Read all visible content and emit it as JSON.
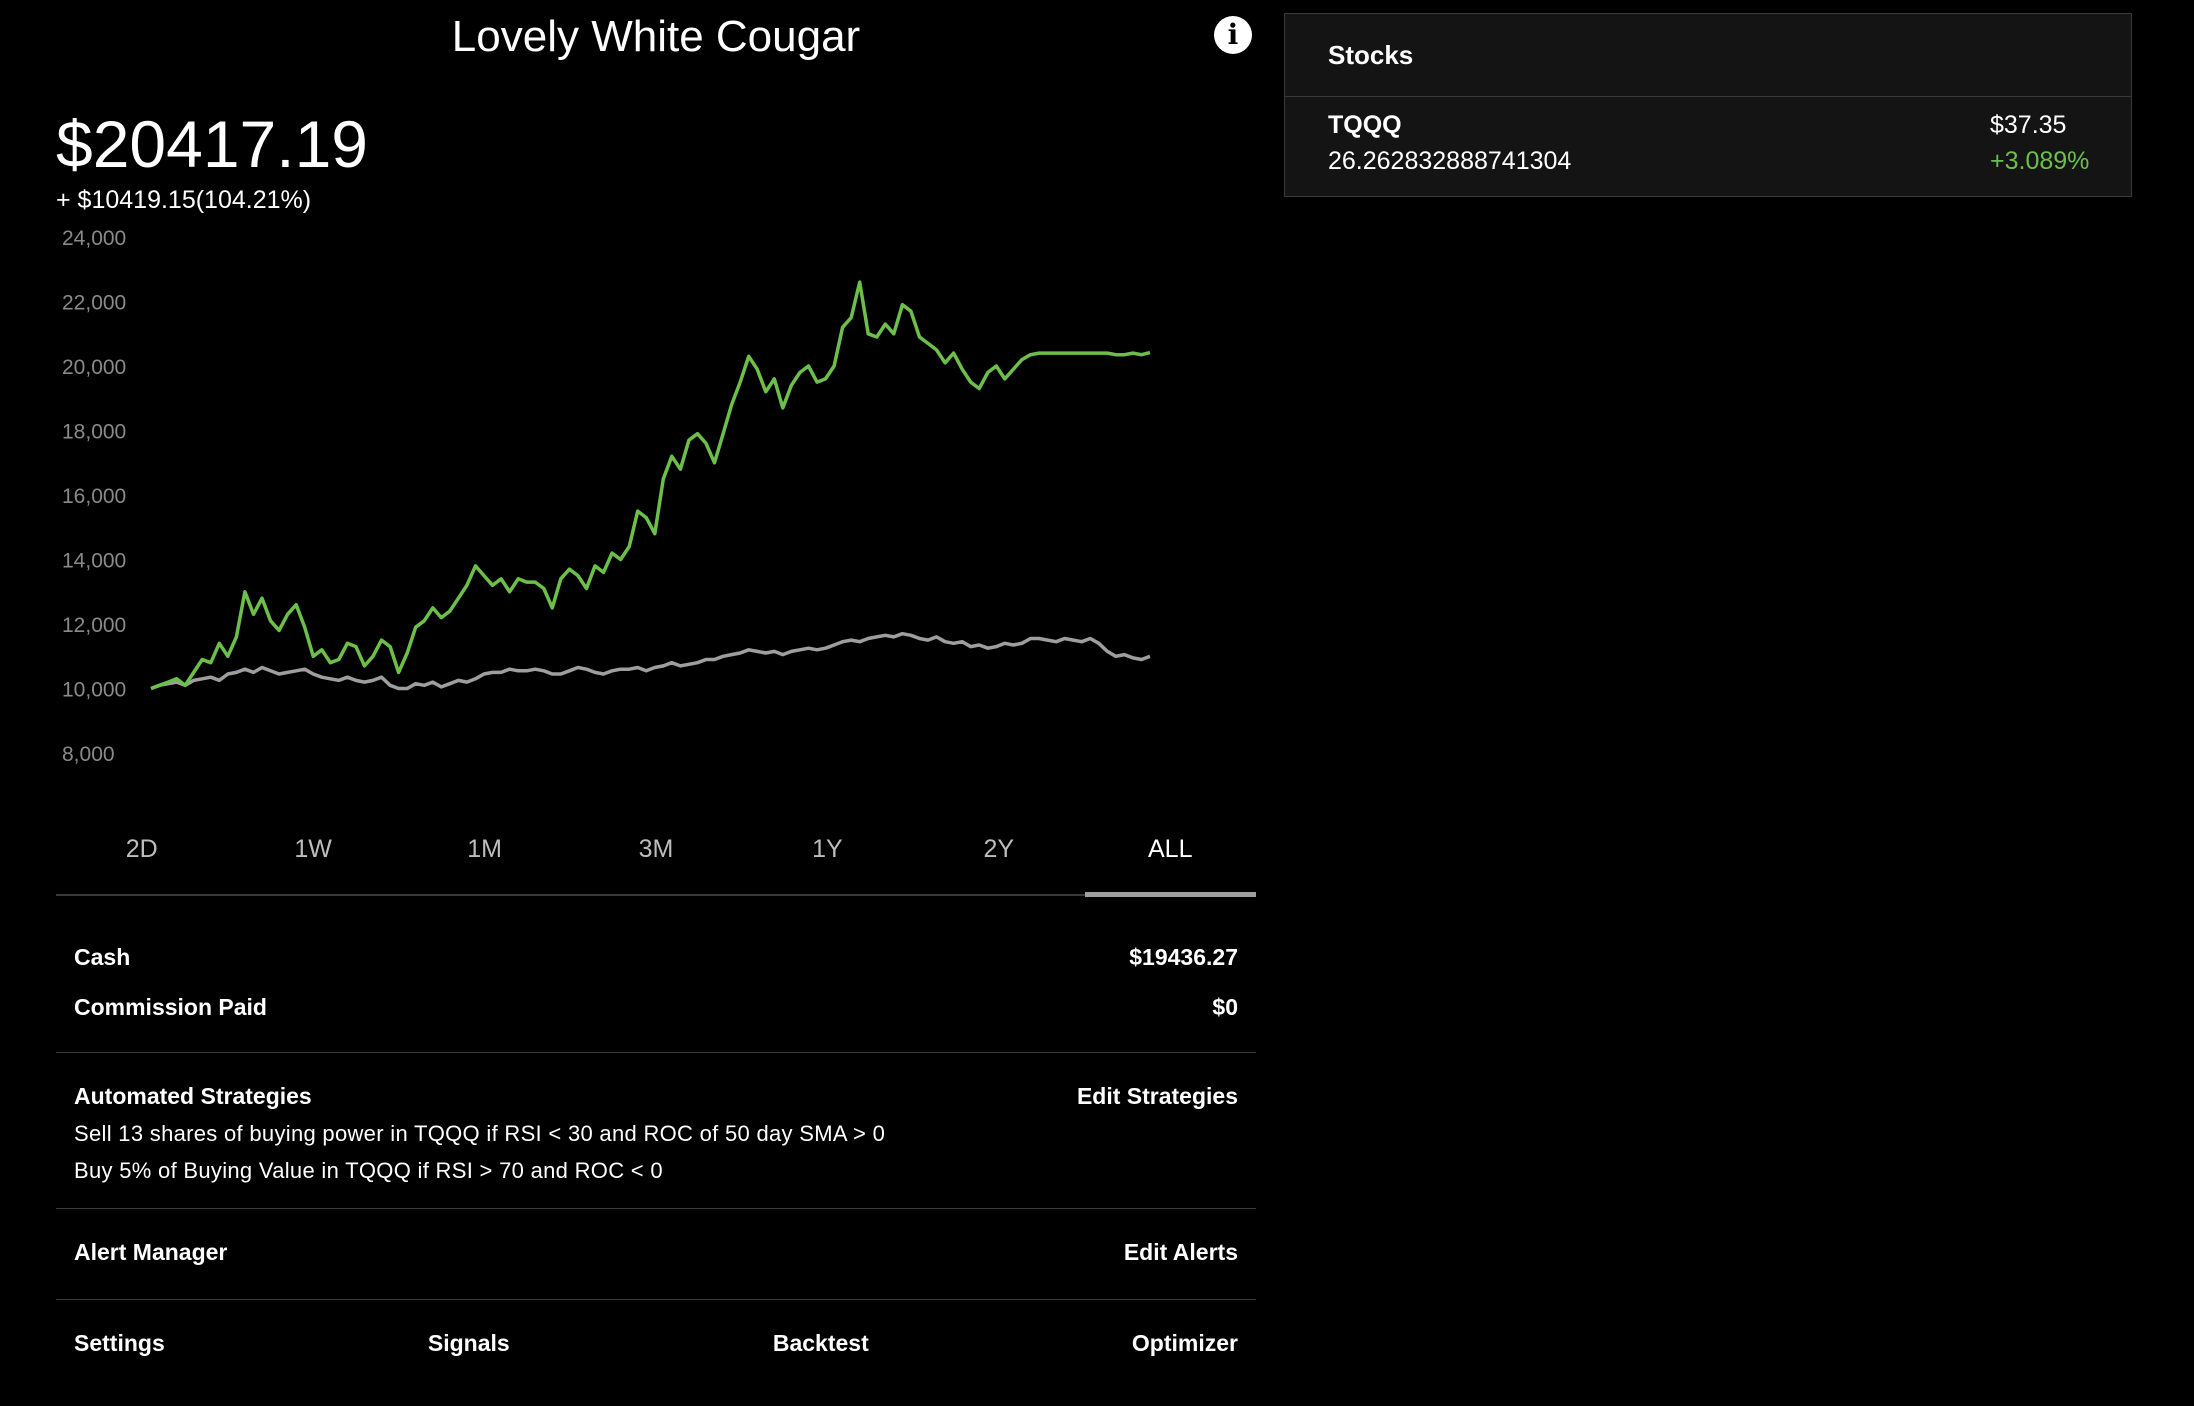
{
  "portfolio": {
    "title": "Lovely White Cougar",
    "balance": "$20417.19",
    "change": "+ $10419.15(104.21%)"
  },
  "colors": {
    "portfolio_line": "#6cc04a",
    "benchmark_line": "#9e9e9e",
    "positive": "#6cc04a"
  },
  "icons": {
    "info": "info-icon"
  },
  "chart_data": {
    "type": "line",
    "ylim": [
      8000,
      24000
    ],
    "y_ticks": [
      "24,000",
      "22,000",
      "20,000",
      "18,000",
      "16,000",
      "14,000",
      "12,000",
      "10,000",
      "8,000"
    ],
    "grid": false,
    "legend": "none",
    "series": [
      {
        "values": [
          10000,
          10100,
          10200,
          10300,
          10100,
          10500,
          10900,
          10800,
          11400,
          11000,
          11600,
          13000,
          12300,
          12800,
          12100,
          11800,
          12300,
          12600,
          11900,
          11000,
          11200,
          10800,
          10900,
          11400,
          11300,
          10700,
          11000,
          11500,
          11300,
          10500,
          11100,
          11900,
          12100,
          12500,
          12200,
          12400,
          12800,
          13200,
          13800,
          13500,
          13200,
          13400,
          13000,
          13400,
          13300,
          13300,
          13100,
          12500,
          13400,
          13700,
          13500,
          13100,
          13800,
          13600,
          14200,
          14000,
          14400,
          15500,
          15300,
          14800,
          16500,
          17200,
          16800,
          17700,
          17900,
          17600,
          17000,
          17900,
          18800,
          19500,
          20300,
          19900,
          19200,
          19600,
          18700,
          19400,
          19800,
          20000,
          19500,
          19600,
          20000,
          21200,
          21500,
          22600,
          21000,
          20900,
          21300,
          21000,
          21900,
          21700,
          20900,
          20700,
          20500,
          20100,
          20400,
          19900,
          19500,
          19300,
          19800,
          20000,
          19600,
          19900,
          20200,
          20350,
          20400,
          20400,
          20400,
          20400,
          20400,
          20400,
          20400,
          20400,
          20400,
          20350,
          20350,
          20400,
          20350,
          20417
        ]
      },
      {
        "values": [
          10000,
          10100,
          10150,
          10200,
          10100,
          10250,
          10300,
          10350,
          10250,
          10450,
          10500,
          10600,
          10500,
          10650,
          10550,
          10450,
          10500,
          10550,
          10600,
          10450,
          10350,
          10300,
          10250,
          10350,
          10250,
          10200,
          10250,
          10350,
          10100,
          10000,
          10000,
          10150,
          10100,
          10200,
          10050,
          10150,
          10250,
          10200,
          10300,
          10450,
          10500,
          10500,
          10600,
          10550,
          10550,
          10600,
          10550,
          10450,
          10450,
          10550,
          10650,
          10600,
          10500,
          10450,
          10550,
          10600,
          10600,
          10650,
          10550,
          10650,
          10700,
          10800,
          10700,
          10750,
          10800,
          10900,
          10900,
          11000,
          11050,
          11100,
          11200,
          11150,
          11100,
          11150,
          11050,
          11150,
          11200,
          11250,
          11200,
          11250,
          11350,
          11450,
          11500,
          11450,
          11550,
          11600,
          11650,
          11600,
          11700,
          11650,
          11550,
          11500,
          11600,
          11450,
          11400,
          11450,
          11300,
          11350,
          11250,
          11300,
          11400,
          11350,
          11400,
          11550,
          11550,
          11500,
          11450,
          11550,
          11500,
          11450,
          11550,
          11400,
          11150,
          11000,
          11050,
          10950,
          10900,
          11000
        ]
      }
    ]
  },
  "ranges": [
    "2D",
    "1W",
    "1M",
    "3M",
    "1Y",
    "2Y",
    "ALL"
  ],
  "account": {
    "cash_label": "Cash",
    "cash_value": "$19436.27",
    "commission_label": "Commission Paid",
    "commission_value": "$0"
  },
  "strategies": {
    "title": "Automated Strategies",
    "edit_label": "Edit Strategies",
    "items": [
      "Sell 13 shares of buying power in TQQQ if RSI < 30 and ROC of 50 day SMA > 0",
      "Buy 5% of Buying Value in TQQQ if RSI > 70 and ROC < 0"
    ]
  },
  "alerts": {
    "title": "Alert Manager",
    "edit_label": "Edit Alerts"
  },
  "bottom_nav": {
    "settings": "Settings",
    "signals": "Signals",
    "backtest": "Backtest",
    "optimizer": "Optimizer"
  },
  "stocks": {
    "header": "Stocks",
    "items": [
      {
        "symbol": "TQQQ",
        "shares": "26.262832888741304",
        "price": "$37.35",
        "change": "+3.089%"
      }
    ]
  }
}
